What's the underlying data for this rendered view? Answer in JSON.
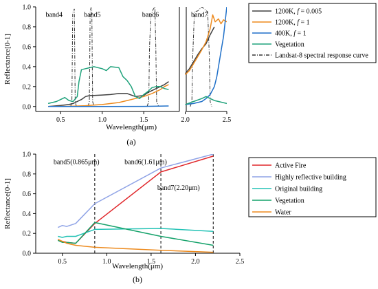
{
  "chart_data": [
    {
      "id": "a",
      "type": "line",
      "caption": "(a)",
      "xlabel": "Wavelength(μm)",
      "ylabel": "Reflectance[0-1]",
      "xlim": [
        0.2,
        2.5
      ],
      "ylim": [
        -0.05,
        1.0
      ],
      "xticks": [
        0.5,
        1.0,
        1.5,
        2.0,
        2.5
      ],
      "xtick_labels": [
        "0.5",
        "1.0",
        "1.5",
        "2.0",
        "2.5"
      ],
      "yticks": [
        0.0,
        0.2,
        0.4,
        0.6,
        0.8,
        1.0
      ],
      "ytick_labels": [
        "0.0",
        "0.2",
        "0.4",
        "0.6",
        "0.8",
        "1.0"
      ],
      "axis_break": [
        1.85,
        2.0
      ],
      "grid": false,
      "legend_position": "right",
      "band_labels": [
        {
          "text": "band4",
          "x": 0.32,
          "y": 0.9
        },
        {
          "text": "band5",
          "x": 0.78,
          "y": 0.9
        },
        {
          "text": "band6",
          "x": 1.48,
          "y": 0.9
        },
        {
          "text": "band7",
          "x": 2.07,
          "y": 0.9
        }
      ],
      "series": [
        {
          "name": "1200K, f = 0.005",
          "name_parts": [
            "1200K, ",
            "f",
            " = 0.005"
          ],
          "color": "#404040",
          "dash": "",
          "x": [
            0.35,
            0.5,
            0.6,
            0.65,
            0.7,
            0.75,
            0.8,
            0.85,
            0.9,
            1.0,
            1.1,
            1.2,
            1.3,
            1.4,
            1.5,
            1.55,
            1.6,
            1.65,
            1.7,
            1.75,
            1.8
          ],
          "y": [
            0.0,
            0.01,
            0.02,
            0.03,
            0.05,
            0.07,
            0.1,
            0.11,
            0.11,
            0.115,
            0.12,
            0.13,
            0.13,
            0.1,
            0.11,
            0.14,
            0.16,
            0.18,
            0.2,
            0.22,
            0.25
          ],
          "x2": [
            2.0,
            2.05,
            2.1,
            2.15,
            2.2,
            2.25,
            2.3,
            2.35
          ],
          "y2": [
            0.33,
            0.38,
            0.45,
            0.52,
            0.58,
            0.63,
            0.72,
            0.8
          ]
        },
        {
          "name": "1200K, f = 1",
          "name_parts": [
            "1200K, ",
            "f",
            " = 1"
          ],
          "color": "#ED8A1D",
          "dash": "",
          "x": [
            0.35,
            0.6,
            0.8,
            1.0,
            1.2,
            1.3,
            1.4,
            1.5,
            1.6,
            1.7,
            1.75,
            1.8
          ],
          "y": [
            0.0,
            0.002,
            0.008,
            0.02,
            0.04,
            0.06,
            0.08,
            0.1,
            0.13,
            0.17,
            0.2,
            0.22
          ],
          "x2": [
            2.0,
            2.05,
            2.1,
            2.15,
            2.2,
            2.25,
            2.3,
            2.33,
            2.36,
            2.4,
            2.43,
            2.46,
            2.5
          ],
          "y2": [
            0.32,
            0.36,
            0.43,
            0.5,
            0.57,
            0.65,
            0.78,
            0.92,
            0.85,
            0.88,
            0.83,
            0.87,
            0.85
          ]
        },
        {
          "name": "400K, f = 1",
          "name_parts": [
            "400K, ",
            "f",
            " = 1"
          ],
          "color": "#1E6FC8",
          "dash": "",
          "x": [
            0.35,
            1.0,
            1.5,
            1.8
          ],
          "y": [
            0.0,
            0.0,
            0.001,
            0.005
          ],
          "x2": [
            2.0,
            2.1,
            2.2,
            2.25,
            2.3,
            2.35,
            2.38,
            2.4,
            2.42,
            2.44,
            2.46,
            2.48,
            2.5
          ],
          "y2": [
            0.02,
            0.03,
            0.05,
            0.08,
            0.12,
            0.2,
            0.3,
            0.4,
            0.5,
            0.6,
            0.7,
            0.85,
            1.0
          ]
        },
        {
          "name": "Vegetation",
          "name_parts": [
            "Vegetation"
          ],
          "color": "#1FA27B",
          "dash": "",
          "x": [
            0.35,
            0.45,
            0.5,
            0.55,
            0.6,
            0.65,
            0.7,
            0.72,
            0.75,
            0.8,
            0.9,
            1.0,
            1.05,
            1.1,
            1.2,
            1.25,
            1.3,
            1.35,
            1.4,
            1.45,
            1.5,
            1.55,
            1.6,
            1.65,
            1.7,
            1.75,
            1.8
          ],
          "y": [
            0.03,
            0.05,
            0.07,
            0.09,
            0.06,
            0.05,
            0.1,
            0.25,
            0.37,
            0.38,
            0.4,
            0.38,
            0.36,
            0.4,
            0.39,
            0.3,
            0.26,
            0.2,
            0.1,
            0.08,
            0.12,
            0.15,
            0.19,
            0.2,
            0.2,
            0.18,
            0.17
          ],
          "x2": [
            2.0,
            2.1,
            2.2,
            2.25,
            2.3,
            2.35,
            2.4,
            2.5
          ],
          "y2": [
            0.02,
            0.05,
            0.08,
            0.1,
            0.08,
            0.06,
            0.05,
            0.03
          ]
        },
        {
          "name": "Landsat-8 spectral response curve",
          "name_parts": [
            "Landsat-8 spectral response curve"
          ],
          "color": "#333333",
          "dash": "5,2,1,2",
          "legend_only": true
        }
      ],
      "response_curves": [
        {
          "x": [
            0.62,
            0.635,
            0.64,
            0.645,
            0.655,
            0.665,
            0.67,
            0.675,
            0.69
          ],
          "y": [
            0,
            0.05,
            0.5,
            0.94,
            0.96,
            0.98,
            0.5,
            0.05,
            0
          ]
        },
        {
          "x": [
            0.83,
            0.845,
            0.85,
            0.855,
            0.865,
            0.875,
            0.88,
            0.885,
            0.9
          ],
          "y": [
            0,
            0.05,
            0.5,
            0.95,
            0.99,
            0.97,
            0.5,
            0.05,
            0
          ]
        },
        {
          "x": [
            1.54,
            1.56,
            1.57,
            1.585,
            1.61,
            1.635,
            1.645,
            1.655,
            1.68
          ],
          "y": [
            0,
            0.05,
            0.6,
            0.9,
            0.97,
            1.0,
            0.6,
            0.05,
            0
          ]
        },
        {
          "x": [
            2.06,
            2.08,
            2.09,
            2.11,
            2.15,
            2.2,
            2.24,
            2.27,
            2.29,
            2.3,
            2.32
          ],
          "y": [
            0,
            0.05,
            0.5,
            0.95,
            0.96,
            1.0,
            0.97,
            0.95,
            0.5,
            0.05,
            0
          ]
        }
      ]
    },
    {
      "id": "b",
      "type": "line",
      "caption": "(b)",
      "xlabel": "Wavelength(μm)",
      "ylabel": "Reflectance[0-1]",
      "xlim": [
        0.2,
        2.5
      ],
      "ylim": [
        0.0,
        1.0
      ],
      "xticks": [
        0.5,
        1.0,
        1.5,
        2.0,
        2.5
      ],
      "xtick_labels": [
        "0.5",
        "1.0",
        "1.5",
        "2.0",
        "2.5"
      ],
      "yticks": [
        0.0,
        0.2,
        0.4,
        0.6,
        0.8,
        1.0
      ],
      "ytick_labels": [
        "0.0",
        "0.2",
        "0.4",
        "0.6",
        "0.8",
        "1.0"
      ],
      "grid": false,
      "legend_position": "right",
      "vlines": [
        0.865,
        1.61,
        2.2
      ],
      "band_labels": [
        {
          "text": "band5(0.865μm)",
          "x": 0.4,
          "y": 0.9
        },
        {
          "text": "band6(1.61μm)",
          "x": 1.2,
          "y": 0.9
        },
        {
          "text": "band7(2.20μm)",
          "x": 1.57,
          "y": 0.64
        }
      ],
      "series": [
        {
          "name": "Active Fire",
          "color": "#E0262A",
          "x": [
            0.45,
            0.5,
            0.55,
            0.65,
            0.865,
            1.61,
            2.2
          ],
          "y": [
            0.13,
            0.12,
            0.11,
            0.1,
            0.3,
            0.82,
            0.98
          ]
        },
        {
          "name": "Highly reflective building",
          "color": "#8FA3E6",
          "x": [
            0.45,
            0.5,
            0.55,
            0.65,
            0.865,
            1.61,
            2.2
          ],
          "y": [
            0.26,
            0.28,
            0.27,
            0.3,
            0.5,
            0.86,
            1.0
          ]
        },
        {
          "name": "Original building",
          "color": "#22C2B5",
          "x": [
            0.45,
            0.5,
            0.55,
            0.65,
            0.865,
            1.61,
            2.2
          ],
          "y": [
            0.17,
            0.16,
            0.17,
            0.17,
            0.24,
            0.25,
            0.22
          ]
        },
        {
          "name": "Vegetation",
          "color": "#14A26A",
          "x": [
            0.45,
            0.5,
            0.55,
            0.65,
            0.865,
            1.61,
            2.2
          ],
          "y": [
            0.13,
            0.11,
            0.11,
            0.1,
            0.31,
            0.17,
            0.08
          ]
        },
        {
          "name": "Water",
          "color": "#ED8A1D",
          "x": [
            0.45,
            0.5,
            0.55,
            0.65,
            0.865,
            1.61,
            2.2
          ],
          "y": [
            0.14,
            0.12,
            0.1,
            0.08,
            0.06,
            0.03,
            0.01
          ]
        }
      ]
    }
  ]
}
